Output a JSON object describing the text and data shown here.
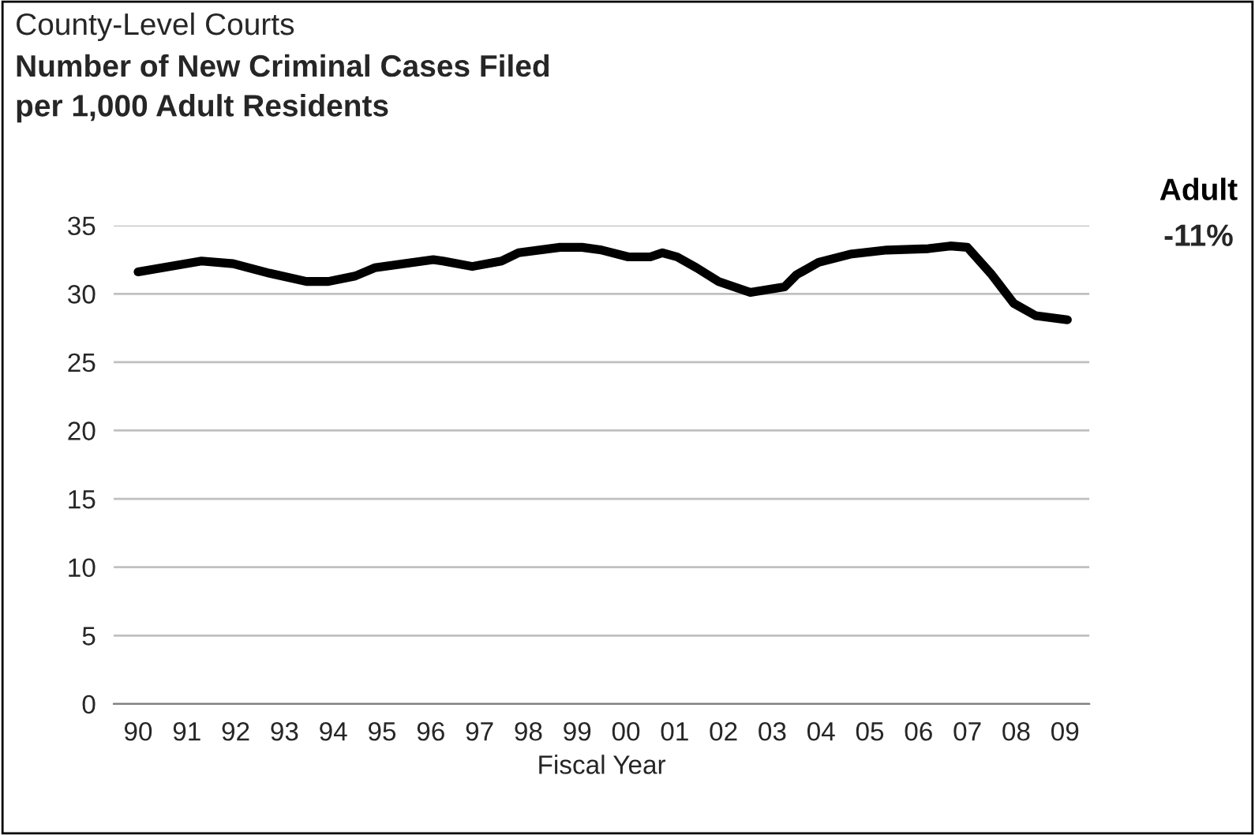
{
  "chart_data": {
    "type": "line",
    "subtitle": "County-Level Courts",
    "title": "Number of New Criminal Cases Filed\nper 1,000 Adult Residents",
    "xlabel": "Fiscal Year",
    "xlim": [
      1989.5,
      2009.5
    ],
    "xticks": [
      {
        "value": 1990,
        "label": "90"
      },
      {
        "value": 1991,
        "label": "91"
      },
      {
        "value": 1992,
        "label": "92"
      },
      {
        "value": 1993,
        "label": "93"
      },
      {
        "value": 1994,
        "label": "94"
      },
      {
        "value": 1995,
        "label": "95"
      },
      {
        "value": 1996,
        "label": "96"
      },
      {
        "value": 1997,
        "label": "97"
      },
      {
        "value": 1998,
        "label": "98"
      },
      {
        "value": 1999,
        "label": "99"
      },
      {
        "value": 2000,
        "label": "00"
      },
      {
        "value": 2001,
        "label": "01"
      },
      {
        "value": 2002,
        "label": "02"
      },
      {
        "value": 2003,
        "label": "03"
      },
      {
        "value": 2004,
        "label": "04"
      },
      {
        "value": 2005,
        "label": "05"
      },
      {
        "value": 2006,
        "label": "06"
      },
      {
        "value": 2007,
        "label": "07"
      },
      {
        "value": 2008,
        "label": "08"
      },
      {
        "value": 2009,
        "label": "09"
      }
    ],
    "ylim": [
      0,
      35
    ],
    "yticks": [
      0,
      5,
      10,
      15,
      20,
      25,
      30,
      35
    ],
    "grid": "y",
    "series": [
      {
        "name": "Adult",
        "color": "#000000",
        "x": [
          1990,
          1991.3,
          1991.95,
          1992.7,
          1993.45,
          1993.9,
          1994.45,
          1994.85,
          1996.05,
          1996.25,
          1996.85,
          1997.45,
          1997.8,
          1998.65,
          1999.1,
          1999.5,
          2000.05,
          2000.5,
          2000.75,
          2001.05,
          2001.45,
          2001.9,
          2002.55,
          2003.25,
          2003.5,
          2003.95,
          2004.6,
          2005.35,
          2006.2,
          2006.65,
          2007.0,
          2007.5,
          2007.95,
          2008.4,
          2009.05
        ],
        "values": [
          31.6,
          32.4,
          32.2,
          31.5,
          30.9,
          30.9,
          31.3,
          31.9,
          32.5,
          32.4,
          32.0,
          32.4,
          33.0,
          33.4,
          33.4,
          33.2,
          32.7,
          32.7,
          33.0,
          32.7,
          31.9,
          30.9,
          30.1,
          30.5,
          31.4,
          32.3,
          32.9,
          33.2,
          33.3,
          33.5,
          33.4,
          31.4,
          29.3,
          28.4,
          28.1
        ]
      }
    ],
    "annotations": [
      "-11%"
    ]
  }
}
